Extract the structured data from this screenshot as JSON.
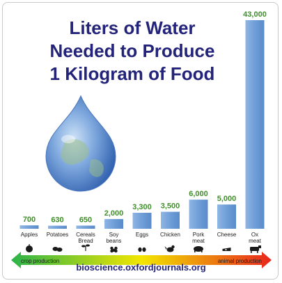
{
  "title_lines": [
    "Liters of Water",
    "Needed to Produce",
    "1 Kilogram of Food"
  ],
  "source": "bioscience.oxfordjournals.org",
  "arrow": {
    "left_label": "crop production",
    "right_label": "animal production",
    "colors": [
      "#2bb34a",
      "#f2e600",
      "#e8261d"
    ]
  },
  "colors": {
    "bar": "#6f9ed8",
    "value_label": "#3f8f2a",
    "title": "#23237a"
  },
  "chart_data": {
    "type": "bar",
    "title": "Liters of Water Needed to Produce 1 Kilogram of Food",
    "categories": [
      "Apples",
      "Potatoes",
      "Cereals Bread",
      "Soy beans",
      "Eggs",
      "Chicken",
      "Pork meat",
      "Cheese",
      "Ox meat"
    ],
    "category_lines": [
      [
        "Apples"
      ],
      [
        "Potatoes"
      ],
      [
        "Cereals",
        "Bread"
      ],
      [
        "Soy",
        "beans"
      ],
      [
        "Eggs"
      ],
      [
        "Chicken"
      ],
      [
        "Pork",
        "meat"
      ],
      [
        "Cheese"
      ],
      [
        "Ox",
        "meat"
      ]
    ],
    "values": [
      700,
      630,
      650,
      2000,
      3300,
      3500,
      6000,
      5000,
      43000
    ],
    "value_labels": [
      "700",
      "630",
      "650",
      "2,000",
      "3,300",
      "3,500",
      "6,000",
      "5,000",
      "43,000"
    ],
    "icons": [
      "apple-icon",
      "potatoes-icon",
      "wheat-sprout-icon",
      "soybeans-icon",
      "eggs-icon",
      "chicken-icon",
      "pig-icon",
      "cheese-icon",
      "cow-icon"
    ]
  }
}
